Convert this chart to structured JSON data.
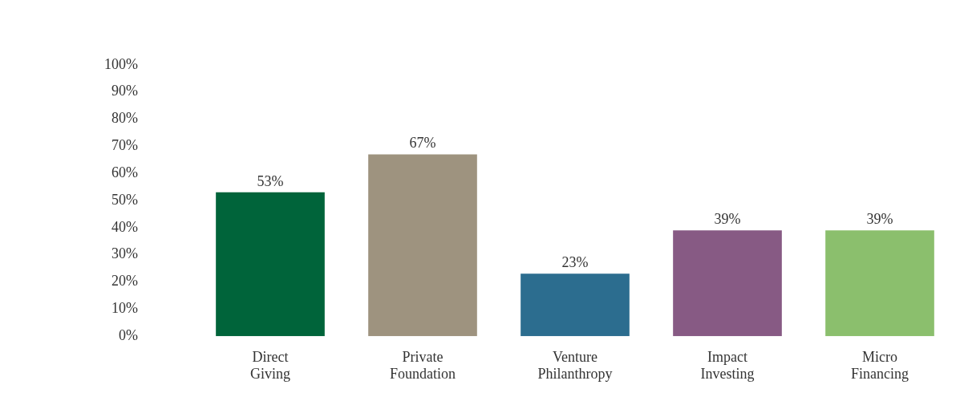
{
  "chart_data": {
    "type": "bar",
    "categories": [
      "Direct Giving",
      "Private Foundation",
      "Venture Philanthropy",
      "Impact Investing",
      "Micro Financing"
    ],
    "values": [
      53,
      67,
      23,
      39,
      39
    ],
    "colors": [
      "#00643a",
      "#9e937f",
      "#2c6d8f",
      "#875a84",
      "#8bbf6d"
    ],
    "value_labels": [
      "53%",
      "67%",
      "23%",
      "39%",
      "39%"
    ],
    "ylim": [
      0,
      100
    ],
    "yticks": [
      {
        "value": 0,
        "label": "0%"
      },
      {
        "value": 10,
        "label": "10%"
      },
      {
        "value": 20,
        "label": "20%"
      },
      {
        "value": 30,
        "label": "30%"
      },
      {
        "value": 40,
        "label": "40%"
      },
      {
        "value": 50,
        "label": "50%"
      },
      {
        "value": 60,
        "label": "60%"
      },
      {
        "value": 70,
        "label": "70%"
      },
      {
        "value": 80,
        "label": "80%"
      },
      {
        "value": 90,
        "label": "90%"
      },
      {
        "value": 100,
        "label": "100%"
      }
    ],
    "grid": false,
    "legend": false
  }
}
